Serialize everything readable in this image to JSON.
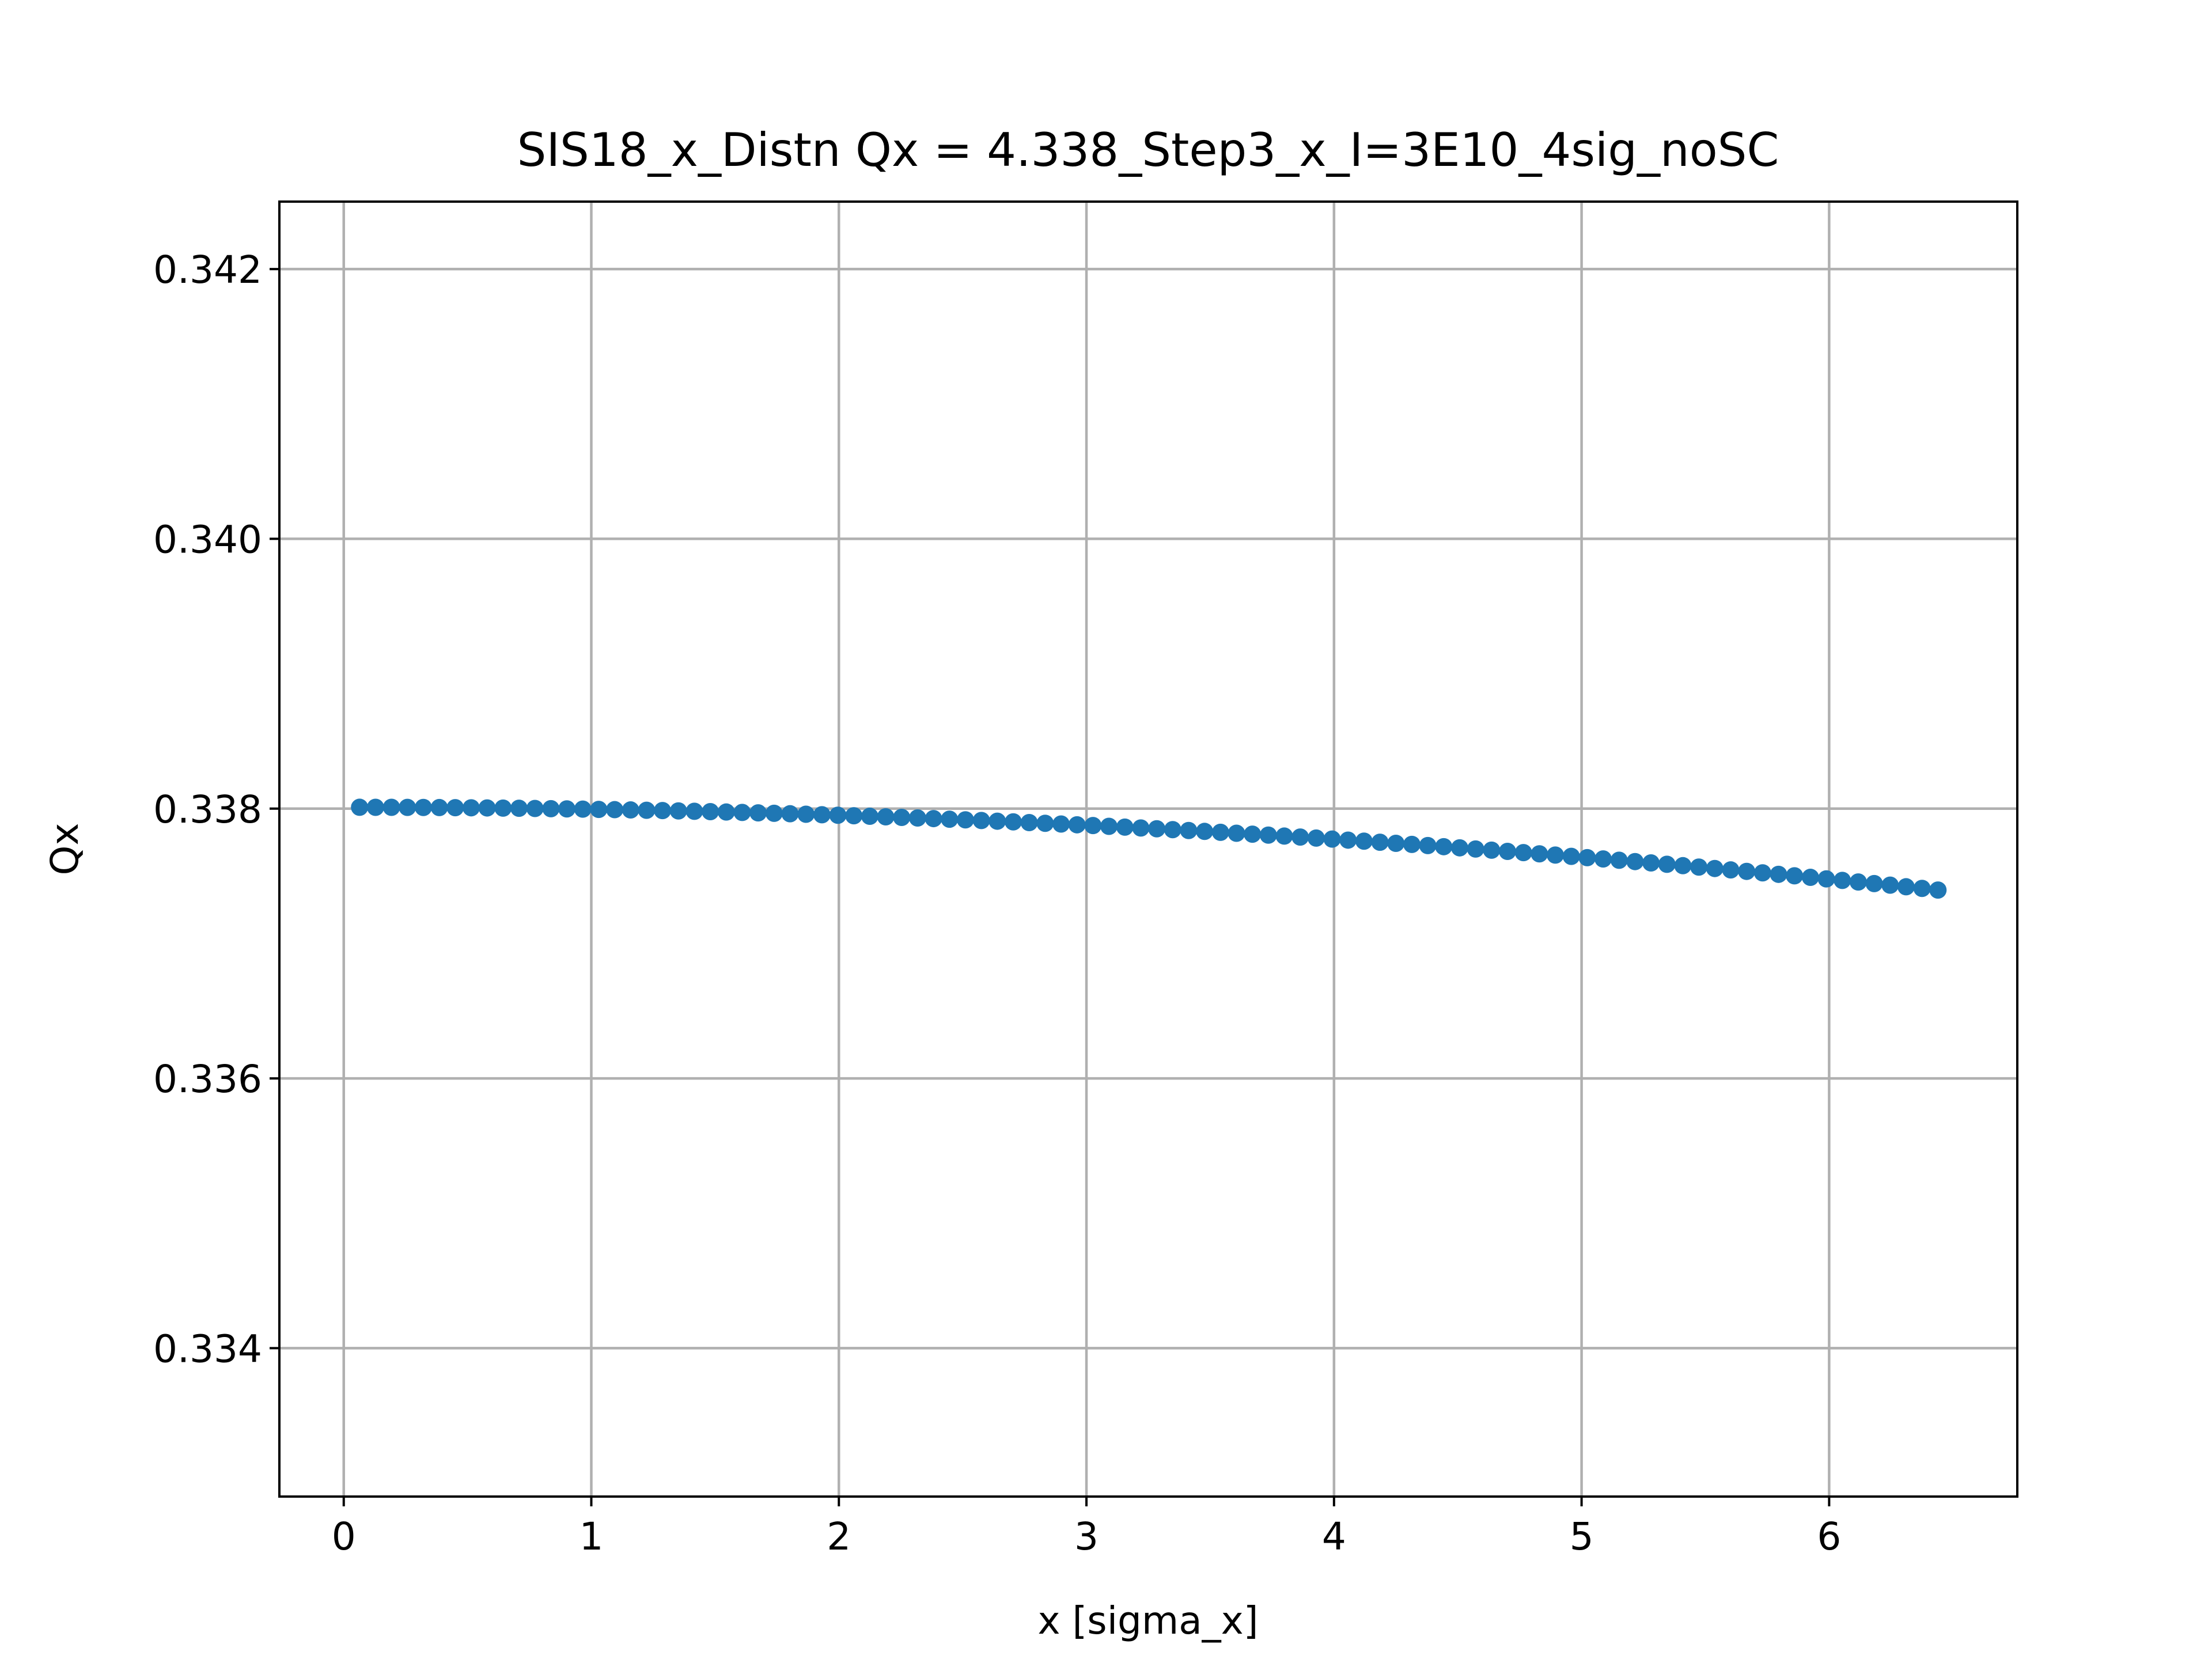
{
  "chart_data": {
    "type": "scatter",
    "title": "SIS18_x_Distn Qx = 4.338_Step3_x_I=3E10_4sig_noSC",
    "xlabel": "x [sigma_x]",
    "ylabel": "Qx",
    "xlim": [
      -0.26,
      6.76
    ],
    "ylim": [
      0.3329,
      0.3425
    ],
    "xticks": [
      0,
      1,
      2,
      3,
      4,
      5,
      6
    ],
    "yticks": [
      0.334,
      0.336,
      0.338,
      0.34,
      0.342
    ],
    "xtick_labels": [
      "0",
      "1",
      "2",
      "3",
      "4",
      "5",
      "6"
    ],
    "ytick_labels": [
      "0.334",
      "0.336",
      "0.338",
      "0.340",
      "0.342"
    ],
    "grid": true,
    "marker_color": "#1f77b4",
    "series": [
      {
        "x_start": 0.064,
        "x_step": 0.0644,
        "count": 100,
        "model": "Qx = 0.33801 - 0.0000148 * x^2",
        "x_end": 6.44,
        "y_start": 0.33801,
        "y_end": 0.33739
      }
    ]
  }
}
